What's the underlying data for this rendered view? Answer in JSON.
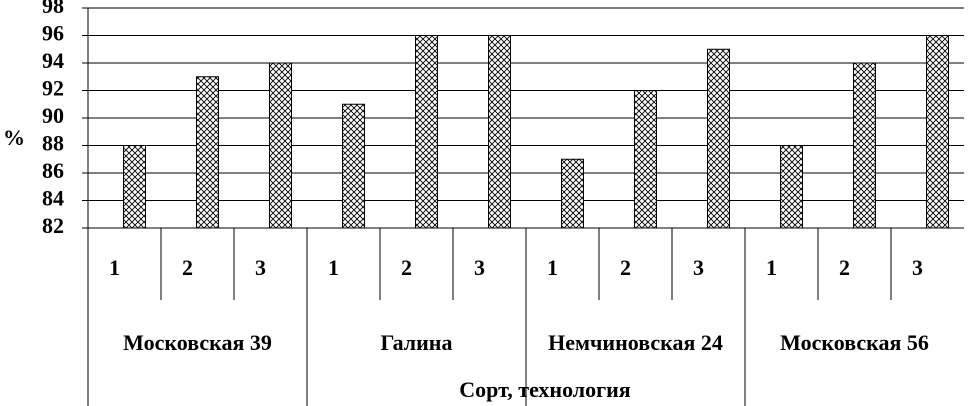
{
  "chart_data": {
    "type": "bar",
    "y_label": "%",
    "x_label": "Сорт, технология",
    "groups": [
      {
        "name": "Московская 39",
        "categories": [
          "1",
          "2",
          "3"
        ],
        "values": [
          88,
          93,
          94
        ]
      },
      {
        "name": "Галина",
        "categories": [
          "1",
          "2",
          "3"
        ],
        "values": [
          91,
          96,
          96
        ]
      },
      {
        "name": "Немчиновская 24",
        "categories": [
          "1",
          "2",
          "3"
        ],
        "values": [
          87,
          92,
          95
        ]
      },
      {
        "name": "Московская 56",
        "categories": [
          "1",
          "2",
          "3"
        ],
        "values": [
          88,
          94,
          96
        ]
      }
    ],
    "ylim": [
      82,
      98
    ],
    "yticks": [
      82,
      84,
      86,
      88,
      90,
      92,
      94,
      96,
      98
    ],
    "grid": true
  }
}
